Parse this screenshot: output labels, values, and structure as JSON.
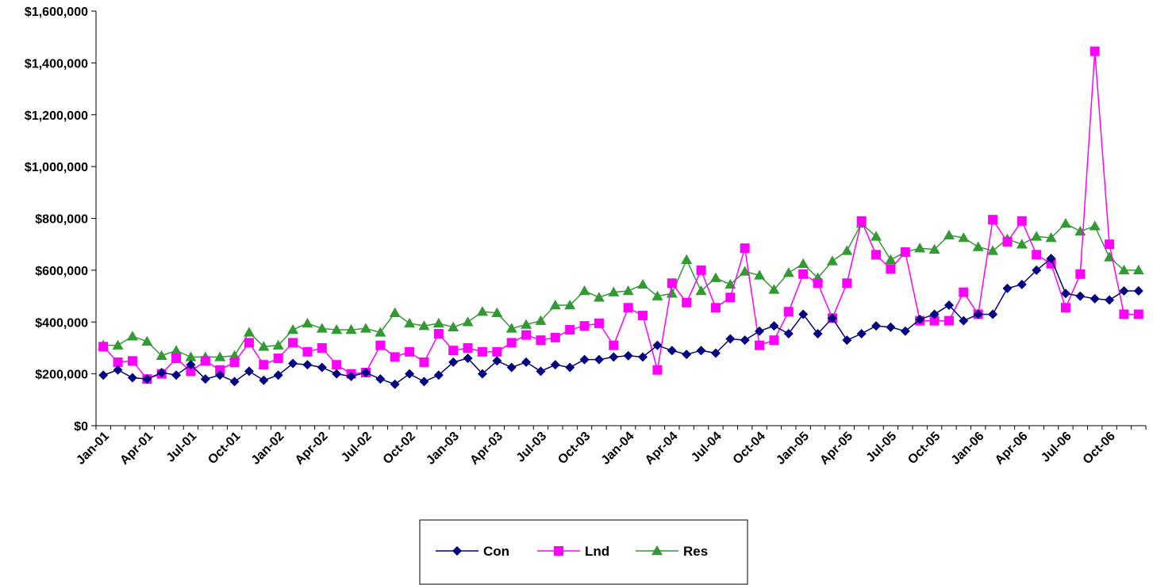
{
  "chart_data": {
    "type": "line",
    "title": "",
    "xlabel": "",
    "ylabel": "",
    "ylim": [
      0,
      1600000
    ],
    "yticks": [
      0,
      200000,
      400000,
      600000,
      800000,
      1000000,
      1200000,
      1400000,
      1600000
    ],
    "ytick_labels": [
      "$0",
      "$200,000",
      "$400,000",
      "$600,000",
      "$800,000",
      "$1,000,000",
      "$1,200,000",
      "$1,400,000",
      "$1,600,000"
    ],
    "grid": false,
    "legend_position": "bottom-center",
    "x": [
      "Jan-01",
      "Feb-01",
      "Mar-01",
      "Apr-01",
      "May-01",
      "Jun-01",
      "Jul-01",
      "Aug-01",
      "Sep-01",
      "Oct-01",
      "Nov-01",
      "Dec-01",
      "Jan-02",
      "Feb-02",
      "Mar-02",
      "Apr-02",
      "May-02",
      "Jun-02",
      "Jul-02",
      "Aug-02",
      "Sep-02",
      "Oct-02",
      "Nov-02",
      "Dec-02",
      "Jan-03",
      "Feb-03",
      "Mar-03",
      "Apr-03",
      "May-03",
      "Jun-03",
      "Jul-03",
      "Aug-03",
      "Sep-03",
      "Oct-03",
      "Nov-03",
      "Dec-03",
      "Jan-04",
      "Feb-04",
      "Mar-04",
      "Apr-04",
      "May-04",
      "Jun-04",
      "Jul-04",
      "Aug-04",
      "Sep-04",
      "Oct-04",
      "Nov-04",
      "Dec-04",
      "Jan-05",
      "Feb-05",
      "Mar-05",
      "Apr-05",
      "May-05",
      "Jun-05",
      "Jul-05",
      "Aug-05",
      "Sep-05",
      "Oct-05",
      "Nov-05",
      "Dec-05",
      "Jan-06",
      "Feb-06",
      "Mar-06",
      "Apr-06",
      "May-06",
      "Jun-06",
      "Jul-06",
      "Aug-06",
      "Sep-06",
      "Oct-06",
      "Nov-06",
      "Dec-06"
    ],
    "xtick_labels": [
      "Jan-01",
      "Apr-01",
      "Jul-01",
      "Oct-01",
      "Jan-02",
      "Apr-02",
      "Jul-02",
      "Oct-02",
      "Jan-03",
      "Apr-03",
      "Jul-03",
      "Oct-03",
      "Jan-04",
      "Apr-04",
      "Jul-04",
      "Oct-04",
      "Jan-05",
      "Apr-05",
      "Jul-05",
      "Oct-05",
      "Jan-06",
      "Apr-06",
      "Jul-06",
      "Oct-06"
    ],
    "series": [
      {
        "name": "Con",
        "color": "#000080",
        "marker": "diamond",
        "values": [
          195000,
          215000,
          185000,
          180000,
          205000,
          195000,
          235000,
          180000,
          195000,
          170000,
          210000,
          175000,
          195000,
          240000,
          235000,
          225000,
          200000,
          190000,
          205000,
          180000,
          160000,
          200000,
          170000,
          195000,
          245000,
          260000,
          200000,
          250000,
          225000,
          245000,
          210000,
          235000,
          225000,
          255000,
          255000,
          265000,
          270000,
          265000,
          310000,
          290000,
          275000,
          290000,
          280000,
          335000,
          330000,
          365000,
          385000,
          355000,
          430000,
          355000,
          415000,
          330000,
          355000,
          385000,
          380000,
          365000,
          410000,
          430000,
          465000,
          405000,
          430000,
          430000,
          530000,
          545000,
          600000,
          645000,
          510000,
          500000,
          490000,
          485000,
          520000,
          520000
        ]
      },
      {
        "name": "Lnd",
        "color": "#FF00FF",
        "marker": "square",
        "values": [
          305000,
          245000,
          250000,
          180000,
          200000,
          260000,
          210000,
          250000,
          215000,
          245000,
          320000,
          235000,
          260000,
          320000,
          285000,
          300000,
          235000,
          200000,
          205000,
          310000,
          265000,
          285000,
          245000,
          355000,
          290000,
          300000,
          285000,
          285000,
          320000,
          350000,
          330000,
          340000,
          370000,
          385000,
          395000,
          310000,
          455000,
          425000,
          215000,
          550000,
          475000,
          600000,
          455000,
          495000,
          685000,
          310000,
          330000,
          440000,
          585000,
          550000,
          415000,
          550000,
          790000,
          660000,
          605000,
          670000,
          405000,
          405000,
          405000,
          515000,
          430000,
          795000,
          710000,
          790000,
          660000,
          625000,
          455000,
          585000,
          1445000,
          700000,
          430000,
          430000
        ]
      },
      {
        "name": "Res",
        "color": "#339933",
        "marker": "triangle",
        "values": [
          310000,
          310000,
          345000,
          325000,
          270000,
          290000,
          265000,
          265000,
          265000,
          270000,
          360000,
          305000,
          310000,
          370000,
          395000,
          375000,
          370000,
          370000,
          375000,
          360000,
          435000,
          395000,
          385000,
          395000,
          380000,
          400000,
          440000,
          435000,
          375000,
          390000,
          405000,
          465000,
          465000,
          520000,
          495000,
          515000,
          520000,
          545000,
          500000,
          510000,
          640000,
          520000,
          570000,
          545000,
          595000,
          580000,
          525000,
          590000,
          625000,
          570000,
          635000,
          675000,
          780000,
          730000,
          640000,
          670000,
          685000,
          680000,
          735000,
          725000,
          690000,
          675000,
          720000,
          700000,
          730000,
          725000,
          780000,
          750000,
          770000,
          650000,
          600000,
          600000
        ]
      }
    ]
  }
}
